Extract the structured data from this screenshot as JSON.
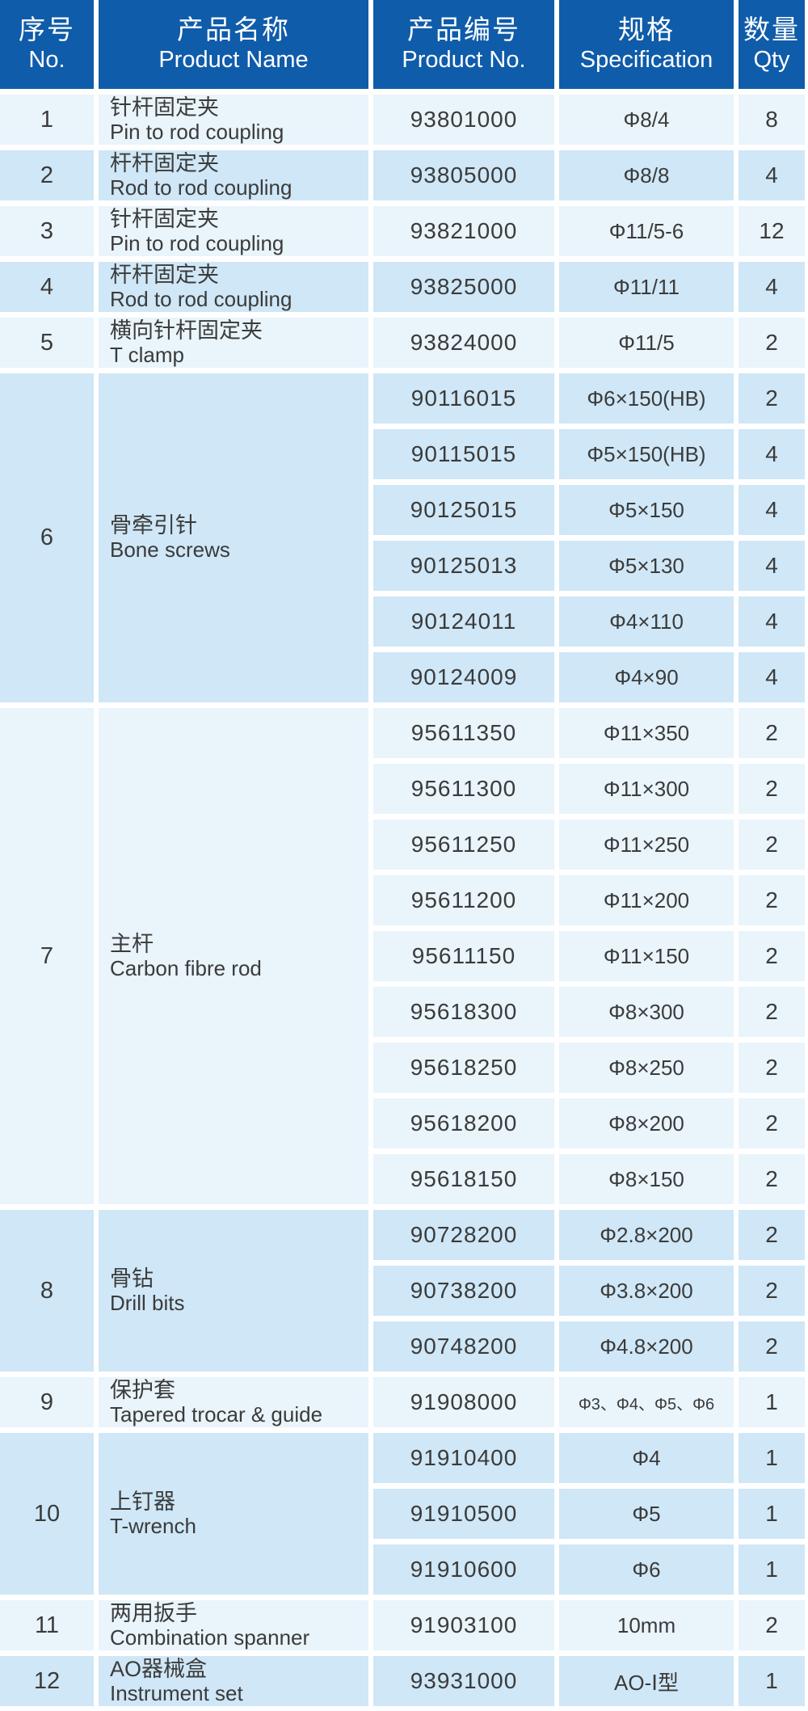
{
  "colors": {
    "header_bg": "#0f5caa",
    "header_text": "#ffffff",
    "row_light": "#e9f4fb",
    "row_dark": "#cfe7f6",
    "body_text": "#3b3b3b",
    "gutter": "#ffffff"
  },
  "header": {
    "columns": [
      {
        "zh": "序号",
        "en": "No."
      },
      {
        "zh": "产品名称",
        "en": "Product Name"
      },
      {
        "zh": "产品编号",
        "en": "Product No."
      },
      {
        "zh": "规格",
        "en": "Specification"
      },
      {
        "zh": "数量",
        "en": "Qty"
      }
    ]
  },
  "table": {
    "groups": [
      {
        "no": "1",
        "name_zh": "针杆固定夹",
        "name_en": "Pin to rod coupling",
        "shade": "light",
        "items": [
          {
            "code": "93801000",
            "spec": "Φ8/4",
            "qty": "8"
          }
        ]
      },
      {
        "no": "2",
        "name_zh": "杆杆固定夹",
        "name_en": "Rod to rod coupling",
        "shade": "dark",
        "items": [
          {
            "code": "93805000",
            "spec": "Φ8/8",
            "qty": "4"
          }
        ]
      },
      {
        "no": "3",
        "name_zh": "针杆固定夹",
        "name_en": "Pin to rod coupling",
        "shade": "light",
        "items": [
          {
            "code": "93821000",
            "spec": "Φ11/5-6",
            "qty": "12"
          }
        ]
      },
      {
        "no": "4",
        "name_zh": "杆杆固定夹",
        "name_en": "Rod to rod coupling",
        "shade": "dark",
        "items": [
          {
            "code": "93825000",
            "spec": "Φ11/11",
            "qty": "4"
          }
        ]
      },
      {
        "no": "5",
        "name_zh": "横向针杆固定夹",
        "name_en": "T clamp",
        "shade": "light",
        "items": [
          {
            "code": "93824000",
            "spec": "Φ11/5",
            "qty": "2"
          }
        ]
      },
      {
        "no": "6",
        "name_zh": "骨牵引针",
        "name_en": "Bone screws",
        "shade": "dark",
        "items": [
          {
            "code": "90116015",
            "spec": "Φ6×150(HB)",
            "qty": "2"
          },
          {
            "code": "90115015",
            "spec": "Φ5×150(HB)",
            "qty": "4"
          },
          {
            "code": "90125015",
            "spec": "Φ5×150",
            "qty": "4"
          },
          {
            "code": "90125013",
            "spec": "Φ5×130",
            "qty": "4"
          },
          {
            "code": "90124011",
            "spec": "Φ4×110",
            "qty": "4"
          },
          {
            "code": "90124009",
            "spec": "Φ4×90",
            "qty": "4"
          }
        ]
      },
      {
        "no": "7",
        "name_zh": "主杆",
        "name_en": "Carbon fibre rod",
        "shade": "light",
        "items": [
          {
            "code": "95611350",
            "spec": "Φ11×350",
            "qty": "2"
          },
          {
            "code": "95611300",
            "spec": "Φ11×300",
            "qty": "2"
          },
          {
            "code": "95611250",
            "spec": "Φ11×250",
            "qty": "2"
          },
          {
            "code": "95611200",
            "spec": "Φ11×200",
            "qty": "2"
          },
          {
            "code": "95611150",
            "spec": "Φ11×150",
            "qty": "2"
          },
          {
            "code": "95618300",
            "spec": "Φ8×300",
            "qty": "2"
          },
          {
            "code": "95618250",
            "spec": "Φ8×250",
            "qty": "2"
          },
          {
            "code": "95618200",
            "spec": "Φ8×200",
            "qty": "2"
          },
          {
            "code": "95618150",
            "spec": "Φ8×150",
            "qty": "2"
          }
        ]
      },
      {
        "no": "8",
        "name_zh": "骨钻",
        "name_en": "Drill bits",
        "shade": "dark",
        "items": [
          {
            "code": "90728200",
            "spec": "Φ2.8×200",
            "qty": "2"
          },
          {
            "code": "90738200",
            "spec": "Φ3.8×200",
            "qty": "2"
          },
          {
            "code": "90748200",
            "spec": "Φ4.8×200",
            "qty": "2"
          }
        ]
      },
      {
        "no": "9",
        "name_zh": "保护套",
        "name_en": "Tapered trocar & guide",
        "shade": "light",
        "items": [
          {
            "code": "91908000",
            "spec": "Φ3、Φ4、Φ5、Φ6",
            "qty": "1"
          }
        ]
      },
      {
        "no": "10",
        "name_zh": "上钉器",
        "name_en": "T-wrench",
        "shade": "dark",
        "items": [
          {
            "code": "91910400",
            "spec": "Φ4",
            "qty": "1"
          },
          {
            "code": "91910500",
            "spec": "Φ5",
            "qty": "1"
          },
          {
            "code": "91910600",
            "spec": "Φ6",
            "qty": "1"
          }
        ]
      },
      {
        "no": "11",
        "name_zh": "两用扳手",
        "name_en": "Combination spanner",
        "shade": "light",
        "items": [
          {
            "code": "91903100",
            "spec": "10mm",
            "qty": "2"
          }
        ]
      },
      {
        "no": "12",
        "name_zh": "AO器械盒",
        "name_en": "Instrument set",
        "shade": "dark",
        "items": [
          {
            "code": "93931000",
            "spec": "AO-Ⅰ型",
            "qty": "1"
          }
        ]
      }
    ]
  }
}
